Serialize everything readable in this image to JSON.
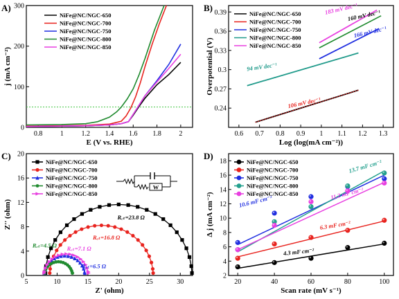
{
  "legend_labels": [
    "NiFe@NC/NGC-650",
    "NiFe@NC/NGC-700",
    "NiFe@NC/NGC-750",
    "NiFe@NC/NGC-800",
    "NiFe@NC/NGC-850"
  ],
  "colors": [
    "#000000",
    "#e8231e",
    "#1f2ee0",
    "#1f8a2e",
    "#e83fe0"
  ],
  "colors_b": [
    "#000000",
    "#e8231e",
    "#1f2ee0",
    "#1f9a8a",
    "#e83fe0"
  ],
  "colors_d": [
    "#000000",
    "#e8231e",
    "#1f2ee0",
    "#23a08e",
    "#e83fe0"
  ],
  "panel_labels": {
    "a": "A)",
    "b": "B)",
    "c": "C)",
    "d": "D)"
  },
  "chart_data": [
    {
      "panel": "A",
      "type": "line",
      "xlabel": "E (V vs. RHE)",
      "ylabel": "j (mA cm⁻²)",
      "xlim": [
        0.7,
        2.1
      ],
      "ylim": [
        0,
        300
      ],
      "xticks": [
        0.8,
        1.0,
        1.2,
        1.4,
        1.6,
        1.8,
        2.0
      ],
      "yticks": [
        0,
        100,
        200,
        300
      ],
      "reference_line": {
        "y": 50,
        "style": "dotted",
        "color": "#3ec43e"
      },
      "series": [
        {
          "name": "NiFe@NC/NGC-650",
          "x": [
            0.7,
            1.0,
            1.2,
            1.4,
            1.5,
            1.56,
            1.6,
            1.65,
            1.7,
            1.8,
            1.9,
            2.0
          ],
          "y": [
            2,
            3,
            4,
            6,
            9,
            14,
            30,
            52,
            72,
            105,
            130,
            160
          ]
        },
        {
          "name": "NiFe@NC/NGC-700",
          "x": [
            0.7,
            1.0,
            1.2,
            1.4,
            1.5,
            1.54,
            1.58,
            1.62,
            1.66,
            1.7,
            1.76,
            1.82,
            1.88
          ],
          "y": [
            3,
            4,
            5,
            8,
            15,
            28,
            48,
            75,
            110,
            150,
            205,
            255,
            300
          ]
        },
        {
          "name": "NiFe@NC/NGC-750",
          "x": [
            0.7,
            1.0,
            1.2,
            1.4,
            1.5,
            1.56,
            1.6,
            1.65,
            1.7,
            1.8,
            1.9,
            2.0
          ],
          "y": [
            2,
            3,
            4,
            6,
            9,
            14,
            32,
            55,
            78,
            115,
            155,
            205
          ]
        },
        {
          "name": "NiFe@NC/NGC-800",
          "x": [
            0.7,
            1.0,
            1.2,
            1.3,
            1.4,
            1.46,
            1.5,
            1.55,
            1.6,
            1.65,
            1.7,
            1.78,
            1.86
          ],
          "y": [
            6,
            7,
            9,
            14,
            25,
            38,
            50,
            70,
            95,
            130,
            170,
            240,
            300
          ]
        },
        {
          "name": "NiFe@NC/NGC-850",
          "x": [
            0.7,
            1.0,
            1.2,
            1.4,
            1.5,
            1.56,
            1.6,
            1.65,
            1.7,
            1.8,
            1.9,
            2.0
          ],
          "y": [
            2,
            3,
            4,
            6,
            9,
            14,
            32,
            55,
            78,
            112,
            145,
            180
          ]
        }
      ]
    },
    {
      "panel": "B",
      "type": "line",
      "xlabel": "Log (log(mA cm⁻²))",
      "ylabel": "Overpotential (V)",
      "xlim": [
        0.55,
        1.35
      ],
      "ylim": [
        0.21,
        0.4
      ],
      "xticks": [
        0.6,
        0.7,
        0.8,
        0.9,
        1.0,
        1.1,
        1.2,
        1.3
      ],
      "yticks": [
        0.24,
        0.27,
        0.3,
        0.33,
        0.36,
        0.39
      ],
      "series": [
        {
          "name": "NiFe@NC/NGC-650",
          "x": [
            0.68,
            1.18
          ],
          "y": [
            0.218,
            0.268
          ]
        },
        {
          "name": "NiFe@NC/NGC-700",
          "x": [
            0.68,
            1.18
          ],
          "y": [
            0.218,
            0.268
          ]
        },
        {
          "name": "NiFe@NC/NGC-750",
          "x": [
            0.99,
            1.28
          ],
          "y": [
            0.317,
            0.364
          ]
        },
        {
          "name": "NiFe@NC/NGC-800",
          "x": [
            0.64,
            1.18
          ],
          "y": [
            0.275,
            0.326
          ]
        },
        {
          "name": "NiFe@NC/NGC-850",
          "x": [
            0.99,
            1.27
          ],
          "y": [
            0.342,
            0.393
          ]
        }
      ],
      "extra_line": {
        "x": [
          0.99,
          1.29
        ],
        "y": [
          0.334,
          0.384
        ],
        "color": "#1f8a2e"
      },
      "annotations": [
        {
          "text": "183 mV dec⁻¹",
          "x": 1.02,
          "y": 0.386,
          "color": "#e83fe0"
        },
        {
          "text": "160 mV dec⁻¹",
          "x": 1.13,
          "y": 0.376,
          "color": "#000000"
        },
        {
          "text": "166 mV dec⁻¹",
          "x": 1.16,
          "y": 0.35,
          "color": "#1f2ee0"
        },
        {
          "text": "94 mV dec⁻¹",
          "x": 0.64,
          "y": 0.298,
          "color": "#1f9a8a"
        },
        {
          "text": "106 mV dec⁻¹",
          "x": 0.84,
          "y": 0.24,
          "color": "#e8231e"
        }
      ]
    },
    {
      "panel": "C",
      "type": "scatter",
      "xlabel": "Z' (ohm)",
      "ylabel": "Z'' (ohm)",
      "xlim": [
        5,
        32
      ],
      "ylim": [
        0,
        20
      ],
      "xticks": [
        5,
        10,
        15,
        20,
        25,
        30
      ],
      "yticks": [
        0,
        4,
        8,
        12,
        16,
        20
      ],
      "circuit_labels": {
        "w": "W"
      },
      "series": [
        {
          "name": "NiFe@NC/NGC-650",
          "center": 20.0,
          "radius": 11.9,
          "marker": "square"
        },
        {
          "name": "NiFe@NC/NGC-700",
          "center": 17.2,
          "radius": 8.4,
          "marker": "circle"
        },
        {
          "name": "NiFe@NC/NGC-750",
          "center": 11.2,
          "radius": 3.3,
          "marker": "triangle-up"
        },
        {
          "name": "NiFe@NC/NGC-800",
          "center": 10.2,
          "radius": 2.3,
          "marker": "hexagon"
        },
        {
          "name": "NiFe@NC/NGC-850",
          "center": 11.5,
          "radius": 3.6,
          "marker": "triangle-right"
        }
      ],
      "annotations": [
        {
          "text": "Rₑₜ=23.8 Ω",
          "x": 19.8,
          "y": 9.2,
          "color": "#000000"
        },
        {
          "text": "Rₑₜ=16.8 Ω",
          "x": 15.8,
          "y": 5.9,
          "color": "#e8231e"
        },
        {
          "text": "Rₑₜ=4.5 Ω",
          "x": 6.0,
          "y": 4.6,
          "color": "#1f8a2e"
        },
        {
          "text": "Rₑₜ=7.1 Ω",
          "x": 11.6,
          "y": 4.1,
          "color": "#e83fe0"
        },
        {
          "text": "Rₑₜ=6.5 Ω",
          "x": 14.0,
          "y": 1.2,
          "color": "#1f2ee0"
        }
      ]
    },
    {
      "panel": "D",
      "type": "scatter",
      "xlabel": "Scan rate (mV s⁻¹)",
      "ylabel": "Δ j (mA cm⁻²)",
      "xlim": [
        15,
        105
      ],
      "ylim": [
        2,
        19
      ],
      "xticks": [
        20,
        40,
        60,
        80,
        100
      ],
      "yticks": [
        2,
        4,
        6,
        8,
        10,
        12,
        14,
        16,
        18
      ],
      "series": [
        {
          "name": "NiFe@NC/NGC-650",
          "x": [
            20,
            40,
            60,
            80,
            100
          ],
          "y": [
            3.2,
            3.8,
            4.4,
            5.9,
            6.5
          ]
        },
        {
          "name": "NiFe@NC/NGC-700",
          "x": [
            20,
            40,
            60,
            80,
            100
          ],
          "y": [
            4.4,
            6.4,
            7.3,
            8.3,
            9.7
          ]
        },
        {
          "name": "NiFe@NC/NGC-750",
          "x": [
            20,
            40,
            60,
            80,
            100
          ],
          "y": [
            6.6,
            10.7,
            13.0,
            14.4,
            15.5
          ]
        },
        {
          "name": "NiFe@NC/NGC-800",
          "x": [
            20,
            40,
            60,
            80,
            100
          ],
          "y": [
            5.6,
            9.5,
            11.6,
            14.5,
            16.3
          ]
        },
        {
          "name": "NiFe@NC/NGC-850",
          "x": [
            20,
            40,
            60,
            80,
            100
          ],
          "y": [
            5.6,
            9.0,
            12.3,
            13.8,
            14.9
          ]
        }
      ],
      "fits": [
        {
          "x": [
            20,
            100
          ],
          "y": [
            3.0,
            6.4
          ],
          "color": "#000000"
        },
        {
          "x": [
            20,
            100
          ],
          "y": [
            4.6,
            9.6
          ],
          "color": "#e8231e"
        },
        {
          "x": [
            20,
            100
          ],
          "y": [
            6.3,
            16.0
          ],
          "color": "#1f2ee0"
        },
        {
          "x": [
            20,
            100
          ],
          "y": [
            5.3,
            16.6
          ],
          "color": "#23a08e"
        },
        {
          "x": [
            20,
            100
          ],
          "y": [
            5.6,
            15.0
          ],
          "color": "#e83fe0"
        }
      ],
      "annotations": [
        {
          "text": "13.7 mF cm⁻²",
          "x": 81,
          "y": 16.3,
          "color": "#23a08e",
          "rotate": -16
        },
        {
          "text": "10.6 mF cm⁻²",
          "x": 21,
          "y": 11.5,
          "color": "#1f2ee0",
          "rotate": -14
        },
        {
          "text": "11.2 mF cm⁻²",
          "x": 71,
          "y": 12.6,
          "color": "#e83fe0",
          "rotate": -14
        },
        {
          "text": "6.3 mF cm⁻²",
          "x": 65,
          "y": 8.4,
          "color": "#e8231e",
          "rotate": -9
        },
        {
          "text": "4.3 mF cm⁻²",
          "x": 45,
          "y": 4.8,
          "color": "#000000",
          "rotate": -6
        }
      ]
    }
  ]
}
